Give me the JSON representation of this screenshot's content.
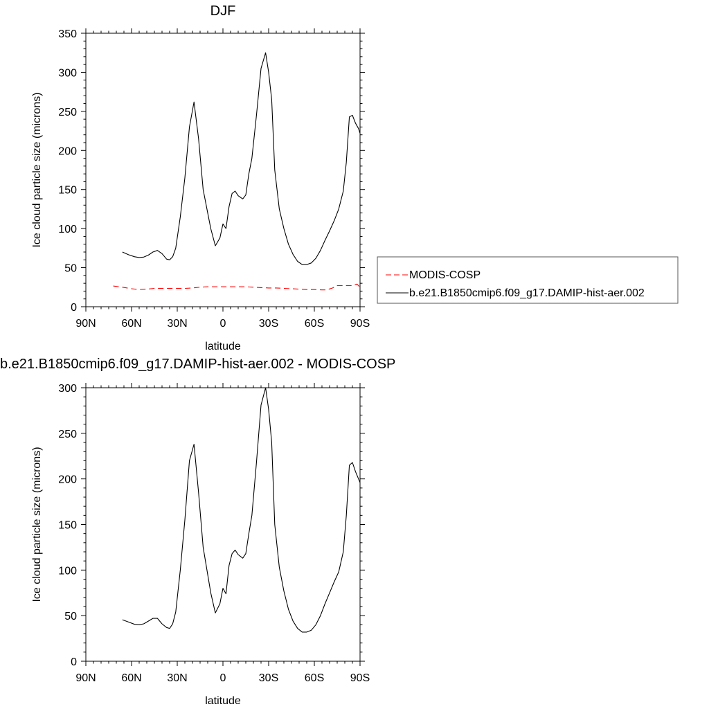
{
  "chart_data": [
    {
      "type": "line",
      "title": "DJF",
      "xlabel": "latitude",
      "ylabel": "Ice cloud particle size (microns)",
      "xlim": [
        -90,
        90
      ],
      "ylim": [
        0,
        350
      ],
      "x_ticks": [
        -90,
        -60,
        -30,
        0,
        30,
        60,
        90
      ],
      "x_tick_labels": [
        "90N",
        "60N",
        "30N",
        "0",
        "30S",
        "60S",
        "90S"
      ],
      "y_ticks": [
        0,
        50,
        100,
        150,
        200,
        250,
        300,
        350
      ],
      "y_tick_labels": [
        "0",
        "50",
        "100",
        "150",
        "200",
        "250",
        "300",
        "350"
      ],
      "grid": false,
      "legend_placement": "right",
      "series": [
        {
          "name": "MODIS-COSP",
          "color": "#ff0000",
          "dash": "dashed",
          "x": [
            -72,
            -66,
            -60,
            -55,
            -50,
            -45,
            -40,
            -35,
            -30,
            -25,
            -20,
            -15,
            -10,
            -5,
            0,
            5,
            10,
            15,
            20,
            25,
            30,
            35,
            40,
            45,
            50,
            55,
            60,
            65,
            68,
            72,
            75,
            80,
            85,
            88,
            90
          ],
          "y": [
            26.5,
            25,
            23,
            22,
            22.5,
            23.5,
            23.5,
            23.5,
            23.5,
            23.5,
            24,
            25,
            25.5,
            25.5,
            25.5,
            25.5,
            25.5,
            25.5,
            25,
            24.5,
            24,
            24,
            23.5,
            23,
            22.5,
            22,
            22,
            21.5,
            21.5,
            24,
            27,
            27,
            27,
            29,
            25
          ]
        },
        {
          "name": "b.e21.B1850cmip6.f09_g17.DAMIP-hist-aer.002",
          "color": "#000000",
          "dash": "solid",
          "x": [
            -66,
            -62,
            -58,
            -55,
            -52,
            -49,
            -46,
            -43,
            -40,
            -37,
            -35,
            -33,
            -31,
            -28,
            -25,
            -22,
            -19,
            -16,
            -13,
            -10,
            -8,
            -5,
            -2,
            0,
            2,
            4,
            6,
            8,
            10,
            13,
            15,
            17,
            19,
            22,
            25,
            28,
            30,
            32,
            34,
            37,
            40,
            43,
            46,
            49,
            52,
            55,
            58,
            61,
            64,
            67,
            70,
            73,
            76,
            79,
            81,
            83,
            85,
            87,
            89,
            90
          ],
          "y": [
            70,
            66.5,
            64,
            63,
            63.5,
            66,
            70,
            72,
            68,
            61,
            60,
            64,
            75,
            115,
            165,
            230,
            262,
            215,
            150,
            120,
            100,
            78,
            88,
            106,
            100,
            128,
            145,
            148,
            142,
            138,
            143,
            170,
            190,
            245,
            305,
            325,
            300,
            265,
            175,
            125,
            100,
            80,
            67,
            58,
            54,
            54,
            56,
            62,
            72,
            85,
            97,
            110,
            125,
            148,
            185,
            243,
            245,
            235,
            228,
            222
          ]
        }
      ]
    },
    {
      "type": "line",
      "title": "b.e21.B1850cmip6.f09_g17.DAMIP-hist-aer.002 - MODIS-COSP",
      "xlabel": "latitude",
      "ylabel": "Ice cloud particle size (microns)",
      "xlim": [
        -90,
        90
      ],
      "ylim": [
        0,
        300
      ],
      "x_ticks": [
        -90,
        -60,
        -30,
        0,
        30,
        60,
        90
      ],
      "x_tick_labels": [
        "90N",
        "60N",
        "30N",
        "0",
        "30S",
        "60S",
        "90S"
      ],
      "y_ticks": [
        0,
        50,
        100,
        150,
        200,
        250,
        300
      ],
      "y_tick_labels": [
        "0",
        "50",
        "100",
        "150",
        "200",
        "250",
        "300"
      ],
      "grid": false,
      "series": [
        {
          "name": "",
          "color": "#000000",
          "dash": "solid",
          "x": [
            -66,
            -62,
            -58,
            -55,
            -52,
            -49,
            -46,
            -43,
            -40,
            -37,
            -35,
            -33,
            -31,
            -28,
            -25,
            -22,
            -19,
            -16,
            -13,
            -10,
            -8,
            -5,
            -2,
            0,
            2,
            4,
            6,
            8,
            10,
            13,
            15,
            17,
            19,
            22,
            25,
            28,
            30,
            32,
            34,
            37,
            40,
            43,
            46,
            49,
            52,
            55,
            58,
            61,
            64,
            67,
            70,
            73,
            76,
            79,
            81,
            83,
            85,
            87,
            89,
            90
          ],
          "y": [
            45.5,
            43,
            40.5,
            40,
            41,
            44,
            47,
            47,
            41,
            37,
            36,
            41,
            54,
            100,
            155,
            220,
            238,
            185,
            125,
            95,
            75,
            53,
            63,
            80,
            74,
            105,
            118,
            122,
            117,
            113,
            118,
            140,
            160,
            218,
            281,
            300,
            276,
            240,
            150,
            103,
            77,
            57,
            44,
            36,
            32,
            32,
            34,
            40,
            50,
            63,
            75,
            87,
            98,
            120,
            160,
            215,
            218,
            208,
            200,
            196
          ]
        }
      ]
    }
  ]
}
